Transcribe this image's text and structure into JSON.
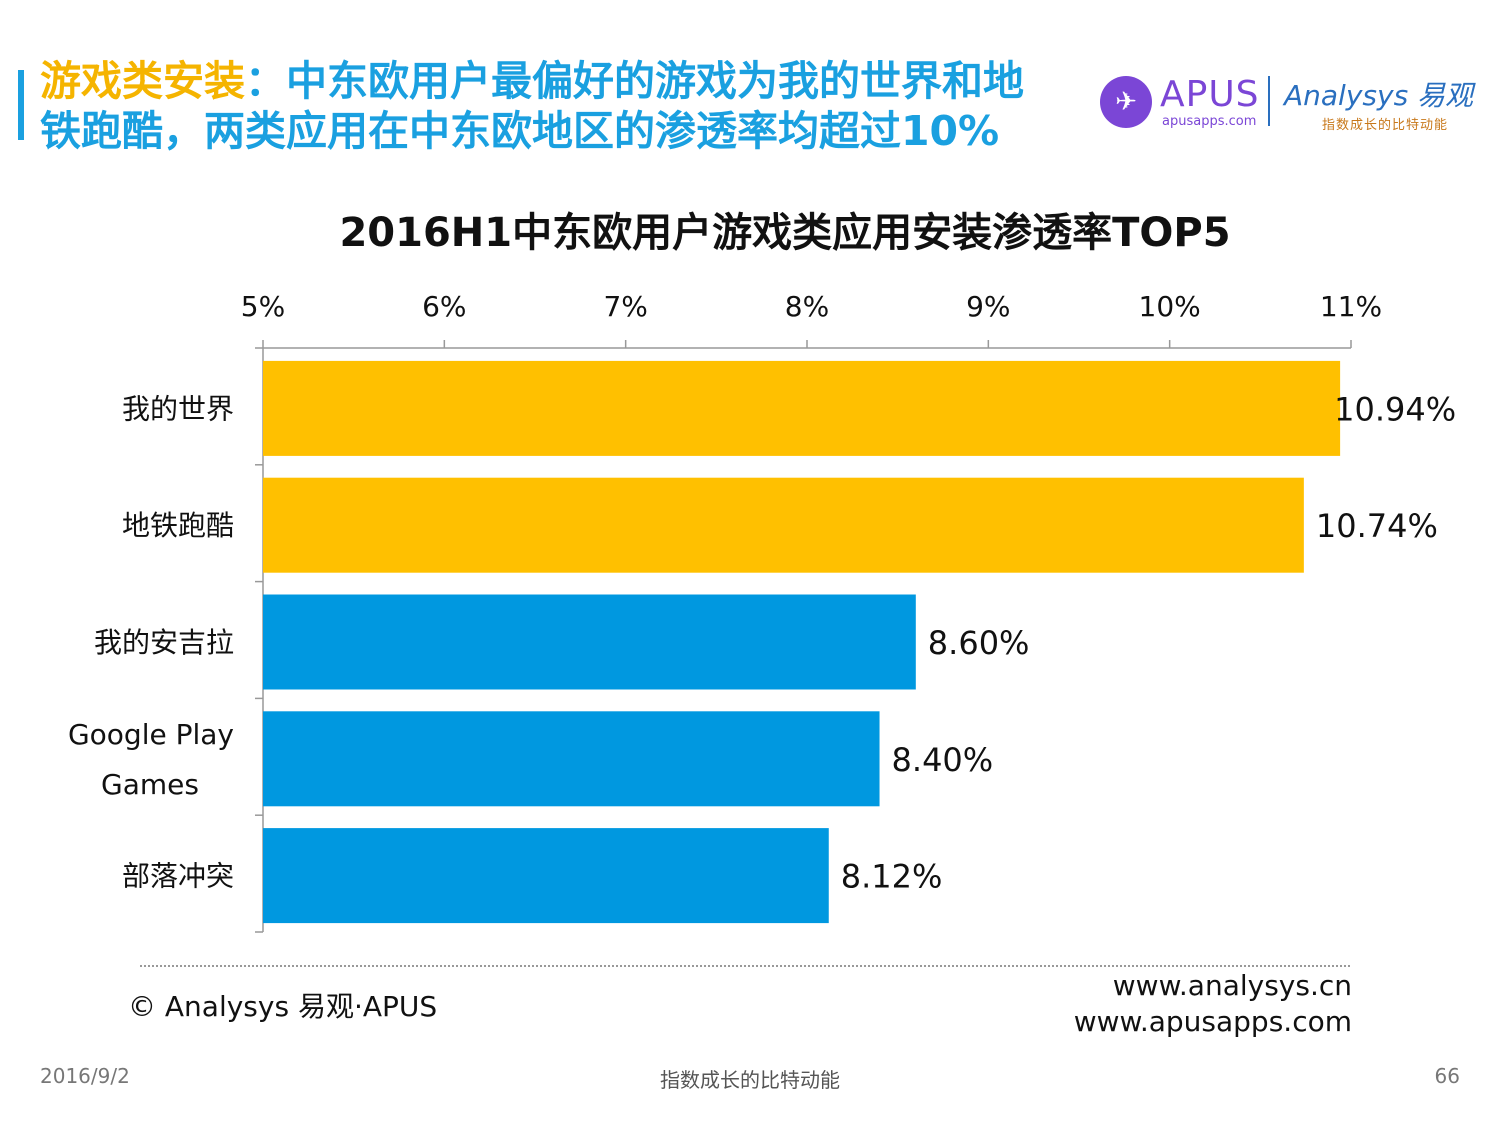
{
  "headline": {
    "highlight": "游戏类安装",
    "rest_line1": "：中东欧用户最偏好的游戏为我的世界和地",
    "line2": "铁跑酷，两类应用在中东欧地区的渗透率均超过10%"
  },
  "logos": {
    "apus": "APUS",
    "apus_site": "apusapps.com",
    "analysys": "Analysys 易观",
    "analysys_slogan": "指数成长的比特动能"
  },
  "colors": {
    "accent": "#1aa0e0",
    "top_bars": "#ffc000",
    "other_bars": "#0098e0"
  },
  "chart_data": {
    "type": "bar",
    "orientation": "horizontal",
    "title": "2016H1中东欧用户游戏类应用安装渗透率TOP5",
    "categories": [
      "我的世界",
      "地铁跑酷",
      "我的安吉拉",
      "Google Play Games",
      "部落冲突"
    ],
    "category_label_lines": [
      [
        "我的世界"
      ],
      [
        "地铁跑酷"
      ],
      [
        "我的安吉拉"
      ],
      [
        "Google Play",
        "Games"
      ],
      [
        "部落冲突"
      ]
    ],
    "values": [
      10.94,
      10.74,
      8.6,
      8.4,
      8.12
    ],
    "value_labels": [
      "10.94%",
      "10.74%",
      "8.60%",
      "8.40%",
      "8.12%"
    ],
    "bar_colors": [
      "#ffc000",
      "#ffc000",
      "#0098e0",
      "#0098e0",
      "#0098e0"
    ],
    "xlim": [
      5,
      11
    ],
    "xticks": [
      5,
      6,
      7,
      8,
      9,
      10,
      11
    ],
    "xtick_labels": [
      "5%",
      "6%",
      "7%",
      "8%",
      "9%",
      "10%",
      "11%"
    ],
    "xaxis_position": "top",
    "grid": false
  },
  "footer": {
    "copyright": "© Analysys 易观·APUS",
    "url1": "www.analysys.cn",
    "url2": "www.apusapps.com",
    "date": "2016/9/2",
    "slogan": "指数成长的比特动能",
    "page": "66"
  }
}
